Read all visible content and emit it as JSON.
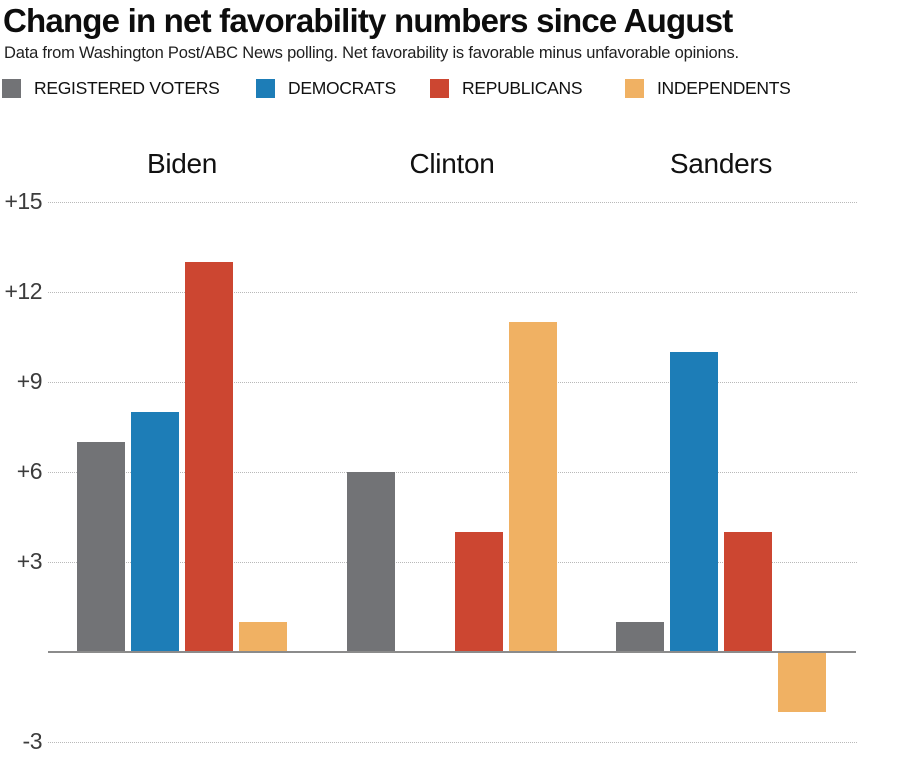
{
  "header": {
    "title": "Change in net favorability numbers since August",
    "subtitle": "Data from Washington Post/ABC News polling. Net favorability is favorable minus unfavorable opinions."
  },
  "legend": {
    "items": [
      {
        "label": "REGISTERED VOTERS",
        "color": "#727376"
      },
      {
        "label": "DEMOCRATS",
        "color": "#1d7db7"
      },
      {
        "label": "REPUBLICANS",
        "color": "#cc4631"
      },
      {
        "label": "INDEPENDENTS",
        "color": "#f0b163"
      }
    ]
  },
  "chart_data": {
    "type": "bar",
    "title": "Change in net favorability numbers since August",
    "categories": [
      "Biden",
      "Clinton",
      "Sanders"
    ],
    "series": [
      {
        "name": "REGISTERED VOTERS",
        "color": "#727376",
        "values": [
          7,
          6,
          1
        ]
      },
      {
        "name": "DEMOCRATS",
        "color": "#1d7db7",
        "values": [
          8,
          0,
          10
        ]
      },
      {
        "name": "REPUBLICANS",
        "color": "#cc4631",
        "values": [
          13,
          4,
          4
        ]
      },
      {
        "name": "INDEPENDENTS",
        "color": "#f0b163",
        "values": [
          1,
          11,
          -2
        ]
      }
    ],
    "y_ticks": [
      {
        "value": 15,
        "label": "+15"
      },
      {
        "value": 12,
        "label": "+12"
      },
      {
        "value": 9,
        "label": "+9"
      },
      {
        "value": 6,
        "label": "+6"
      },
      {
        "value": 3,
        "label": "+3"
      },
      {
        "value": -3,
        "label": "-3"
      }
    ],
    "ylim": [
      -4,
      16.5
    ],
    "xlabel": "",
    "ylabel": "",
    "grid": "horizontal-dotted",
    "legend_position": "top",
    "baseline_value": 0,
    "colors": {
      "gridline": "#b9b9b9",
      "baseline": "#8b8b8b",
      "tick_text": "#3c3c3c",
      "label_text": "#111111"
    }
  }
}
